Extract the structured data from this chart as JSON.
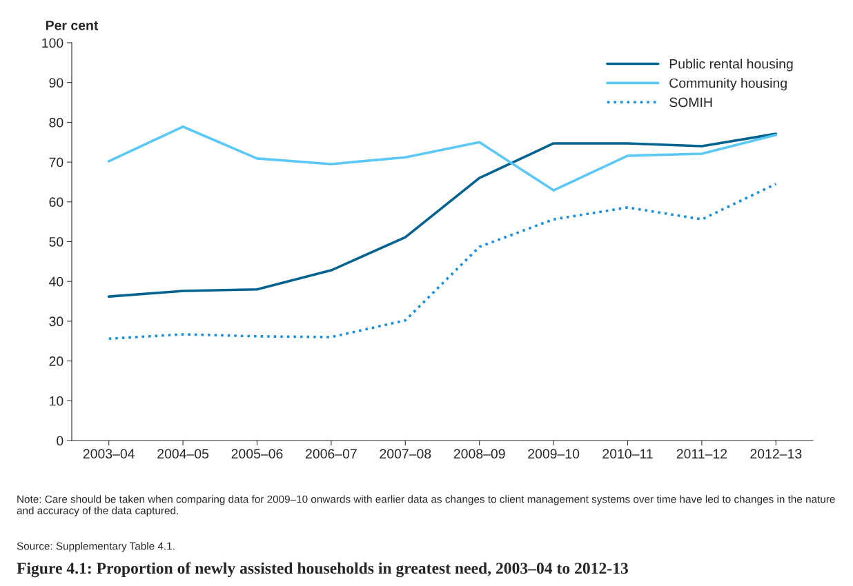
{
  "chart_data": {
    "type": "line",
    "title": "Figure 4.1: Proportion of newly assisted households in greatest need, 2003–04 to 2012-13",
    "ylabel": "Per cent",
    "categories": [
      "2003–04",
      "2004–05",
      "2005–06",
      "2006–07",
      "2007–08",
      "2008–09",
      "2009–10",
      "2010–11",
      "2011–12",
      "2012–13"
    ],
    "series": [
      {
        "name": "Public rental housing",
        "color": "#00628f",
        "line_style": "solid",
        "values": [
          36.2,
          37.6,
          38.0,
          42.8,
          51.1,
          66.0,
          74.7,
          74.7,
          74.0,
          77.1
        ]
      },
      {
        "name": "Community housing",
        "color": "#5bc8f5",
        "line_style": "solid",
        "values": [
          70.2,
          78.9,
          70.9,
          69.5,
          71.2,
          75.0,
          62.9,
          71.6,
          72.1,
          76.8
        ]
      },
      {
        "name": "SOMIH",
        "color": "#1a8fd6",
        "line_style": "dotted",
        "values": [
          25.6,
          26.7,
          26.2,
          26.0,
          30.2,
          48.7,
          55.6,
          58.6,
          55.6,
          64.5
        ]
      }
    ],
    "ylim": [
      0,
      100
    ],
    "yticks": [
      0,
      10,
      20,
      30,
      40,
      50,
      60,
      70,
      80,
      90,
      100
    ],
    "grid": false,
    "legend": "top right",
    "marker": "none",
    "annotations": [
      "Note: Care should be taken when comparing data for 2009–10 onwards with earlier data as changes to client management systems over time have led to changes in the nature and accuracy of the data captured.",
      "Source: Supplementary Table 4.1."
    ]
  }
}
